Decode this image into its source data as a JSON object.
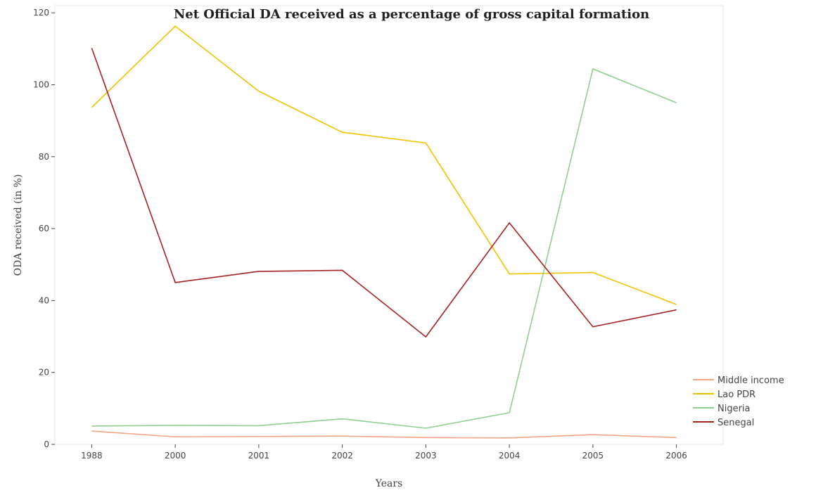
{
  "chart_data": {
    "type": "line",
    "title": "Net Official DA received as a percentage of gross capital formation",
    "x_label": "Years",
    "y_label": "ODA received (in %)",
    "categories": [
      "1988",
      "2000",
      "2001",
      "2002",
      "2003",
      "2004",
      "2005",
      "2006"
    ],
    "series": [
      {
        "name": "Middle income",
        "color": "#f4a582",
        "values": [
          3.7,
          2.1,
          2.2,
          2.3,
          1.9,
          1.8,
          2.7,
          1.9
        ]
      },
      {
        "name": "Lao PDR",
        "color": "#f2c200",
        "values": [
          93.7,
          116.3,
          98.2,
          86.8,
          83.8,
          47.4,
          47.8,
          38.9
        ]
      },
      {
        "name": "Nigeria",
        "color": "#8fcf8f",
        "values": [
          5.1,
          5.3,
          5.2,
          7.1,
          4.5,
          8.8,
          104.4,
          95.0
        ]
      },
      {
        "name": "Senegal",
        "color": "#a52222",
        "values": [
          110.2,
          45.0,
          48.1,
          48.4,
          29.9,
          61.6,
          32.7,
          37.4
        ]
      }
    ],
    "ylim": [
      0,
      122
    ],
    "yticks": [
      0,
      20,
      40,
      60,
      80,
      100,
      120
    ],
    "legend": "lower right"
  }
}
